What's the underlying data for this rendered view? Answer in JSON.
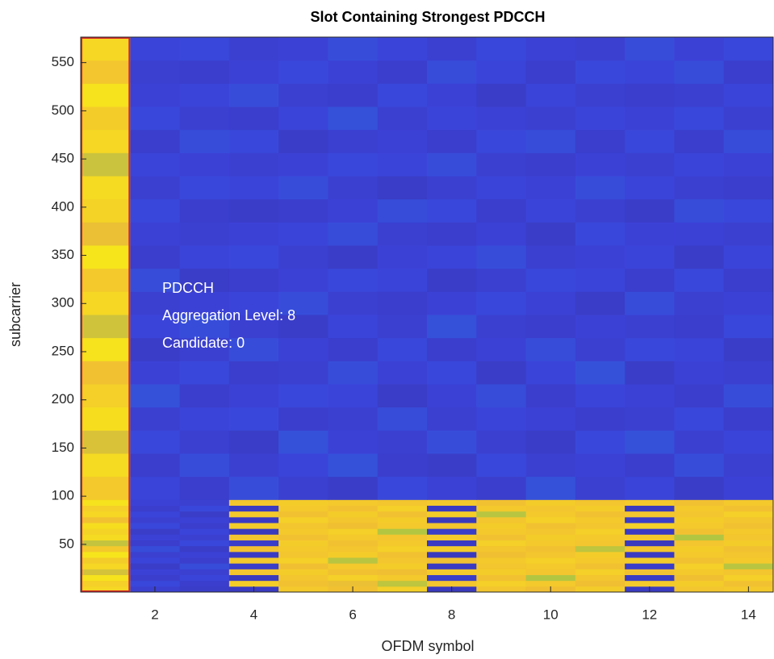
{
  "chart_data": {
    "type": "heatmap",
    "title": "Slot Containing Strongest PDCCH",
    "x_label": "OFDM symbol",
    "y_label": "subcarrier",
    "annotation": [
      "PDCCH",
      "Aggregation Level: 8",
      "Candidate: 0"
    ],
    "x": [
      1,
      2,
      3,
      4,
      5,
      6,
      7,
      8,
      9,
      10,
      11,
      12,
      13,
      14
    ],
    "y_edges": [
      0.5,
      6.5,
      12.5,
      18.5,
      24.5,
      30.5,
      36.5,
      42.5,
      48.5,
      54.5,
      60.5,
      66.5,
      72.5,
      78.5,
      84.5,
      90.5,
      96.5,
      120.5,
      144.5,
      168.5,
      192.5,
      216.5,
      240.5,
      264.5,
      288.5,
      312.5,
      336.5,
      360.5,
      384.5,
      408.5,
      432.5,
      456.5,
      480.5,
      504.5,
      528.5,
      552.5,
      576.5
    ],
    "values": [
      [
        0.9,
        0.15,
        0.13,
        0.12,
        0.86,
        0.84,
        0.88,
        0.11,
        0.85,
        0.83,
        0.87,
        0.12,
        0.85,
        0.86
      ],
      [
        0.88,
        0.18,
        0.14,
        0.87,
        0.84,
        0.82,
        0.74,
        0.85,
        0.88,
        0.86,
        0.83,
        0.86,
        0.87,
        0.84
      ],
      [
        0.93,
        0.14,
        0.17,
        0.11,
        0.85,
        0.88,
        0.86,
        0.13,
        0.84,
        0.72,
        0.85,
        0.12,
        0.83,
        0.88
      ],
      [
        0.78,
        0.16,
        0.15,
        0.85,
        0.87,
        0.84,
        0.83,
        0.86,
        0.87,
        0.85,
        0.88,
        0.84,
        0.86,
        0.85
      ],
      [
        0.9,
        0.13,
        0.19,
        0.13,
        0.83,
        0.86,
        0.87,
        0.12,
        0.85,
        0.86,
        0.84,
        0.13,
        0.88,
        0.73
      ],
      [
        0.87,
        0.17,
        0.14,
        0.86,
        0.88,
        0.73,
        0.85,
        0.84,
        0.86,
        0.88,
        0.86,
        0.87,
        0.84,
        0.86
      ],
      [
        0.94,
        0.15,
        0.16,
        0.12,
        0.85,
        0.87,
        0.84,
        0.11,
        0.83,
        0.85,
        0.87,
        0.12,
        0.86,
        0.85
      ],
      [
        0.86,
        0.19,
        0.13,
        0.84,
        0.86,
        0.85,
        0.88,
        0.87,
        0.85,
        0.84,
        0.74,
        0.85,
        0.87,
        0.84
      ],
      [
        0.75,
        0.14,
        0.18,
        0.13,
        0.87,
        0.84,
        0.86,
        0.12,
        0.88,
        0.86,
        0.85,
        0.11,
        0.85,
        0.87
      ],
      [
        0.91,
        0.16,
        0.15,
        0.85,
        0.84,
        0.86,
        0.85,
        0.86,
        0.84,
        0.87,
        0.86,
        0.86,
        0.72,
        0.85
      ],
      [
        0.89,
        0.13,
        0.17,
        0.11,
        0.86,
        0.88,
        0.72,
        0.13,
        0.86,
        0.85,
        0.88,
        0.12,
        0.84,
        0.86
      ],
      [
        0.92,
        0.18,
        0.14,
        0.87,
        0.85,
        0.83,
        0.86,
        0.85,
        0.87,
        0.84,
        0.85,
        0.88,
        0.86,
        0.84
      ],
      [
        0.84,
        0.15,
        0.16,
        0.12,
        0.88,
        0.85,
        0.87,
        0.11,
        0.85,
        0.88,
        0.86,
        0.13,
        0.87,
        0.85
      ],
      [
        0.9,
        0.17,
        0.13,
        0.86,
        0.84,
        0.87,
        0.84,
        0.87,
        0.73,
        0.86,
        0.84,
        0.85,
        0.85,
        0.88
      ],
      [
        0.88,
        0.14,
        0.18,
        0.12,
        0.86,
        0.84,
        0.88,
        0.12,
        0.86,
        0.85,
        0.87,
        0.11,
        0.86,
        0.84
      ],
      [
        0.93,
        0.16,
        0.15,
        0.85,
        0.87,
        0.86,
        0.85,
        0.86,
        0.84,
        0.87,
        0.85,
        0.86,
        0.84,
        0.86
      ],
      [
        0.86,
        0.17,
        0.14,
        0.19,
        0.15,
        0.13,
        0.18,
        0.16,
        0.14,
        0.2,
        0.15,
        0.17,
        0.13,
        0.16
      ],
      [
        0.91,
        0.14,
        0.19,
        0.15,
        0.17,
        0.2,
        0.14,
        0.13,
        0.18,
        0.15,
        0.16,
        0.14,
        0.19,
        0.15
      ],
      [
        0.79,
        0.18,
        0.15,
        0.13,
        0.2,
        0.16,
        0.15,
        0.19,
        0.15,
        0.13,
        0.18,
        0.2,
        0.15,
        0.17
      ],
      [
        0.92,
        0.15,
        0.17,
        0.18,
        0.14,
        0.15,
        0.19,
        0.15,
        0.17,
        0.16,
        0.14,
        0.15,
        0.18,
        0.14
      ],
      [
        0.88,
        0.2,
        0.14,
        0.16,
        0.18,
        0.17,
        0.13,
        0.16,
        0.19,
        0.14,
        0.17,
        0.16,
        0.14,
        0.19
      ],
      [
        0.84,
        0.16,
        0.18,
        0.14,
        0.15,
        0.19,
        0.16,
        0.18,
        0.13,
        0.17,
        0.2,
        0.13,
        0.16,
        0.15
      ],
      [
        0.93,
        0.13,
        0.15,
        0.19,
        0.16,
        0.14,
        0.18,
        0.14,
        0.16,
        0.19,
        0.15,
        0.18,
        0.17,
        0.13
      ],
      [
        0.77,
        0.17,
        0.19,
        0.15,
        0.13,
        0.17,
        0.15,
        0.2,
        0.15,
        0.14,
        0.16,
        0.15,
        0.14,
        0.18
      ],
      [
        0.9,
        0.15,
        0.16,
        0.17,
        0.19,
        0.15,
        0.14,
        0.16,
        0.18,
        0.16,
        0.13,
        0.19,
        0.15,
        0.16
      ],
      [
        0.86,
        0.19,
        0.13,
        0.14,
        0.16,
        0.18,
        0.17,
        0.13,
        0.15,
        0.18,
        0.17,
        0.14,
        0.18,
        0.14
      ],
      [
        0.94,
        0.14,
        0.17,
        0.18,
        0.15,
        0.13,
        0.16,
        0.17,
        0.19,
        0.15,
        0.16,
        0.17,
        0.13,
        0.17
      ],
      [
        0.82,
        0.16,
        0.15,
        0.16,
        0.17,
        0.19,
        0.15,
        0.14,
        0.16,
        0.13,
        0.18,
        0.16,
        0.16,
        0.15
      ],
      [
        0.89,
        0.18,
        0.14,
        0.13,
        0.14,
        0.16,
        0.19,
        0.18,
        0.14,
        0.17,
        0.15,
        0.13,
        0.19,
        0.18
      ],
      [
        0.91,
        0.15,
        0.18,
        0.17,
        0.19,
        0.15,
        0.13,
        0.15,
        0.17,
        0.16,
        0.19,
        0.17,
        0.15,
        0.14
      ],
      [
        0.76,
        0.17,
        0.16,
        0.15,
        0.16,
        0.18,
        0.17,
        0.19,
        0.15,
        0.14,
        0.16,
        0.15,
        0.17,
        0.16
      ],
      [
        0.9,
        0.14,
        0.19,
        0.18,
        0.13,
        0.15,
        0.16,
        0.14,
        0.18,
        0.19,
        0.14,
        0.18,
        0.14,
        0.19
      ],
      [
        0.87,
        0.18,
        0.15,
        0.14,
        0.17,
        0.2,
        0.15,
        0.17,
        0.16,
        0.15,
        0.17,
        0.16,
        0.18,
        0.15
      ],
      [
        0.93,
        0.16,
        0.17,
        0.19,
        0.15,
        0.14,
        0.18,
        0.16,
        0.13,
        0.17,
        0.15,
        0.14,
        0.15,
        0.17
      ],
      [
        0.85,
        0.15,
        0.14,
        0.16,
        0.18,
        0.16,
        0.14,
        0.19,
        0.17,
        0.14,
        0.18,
        0.17,
        0.19,
        0.14
      ],
      [
        0.9,
        0.17,
        0.18,
        0.15,
        0.16,
        0.19,
        0.17,
        0.15,
        0.18,
        0.16,
        0.15,
        0.19,
        0.16,
        0.18
      ]
    ],
    "clim": [
      0,
      1
    ],
    "colormap": [
      "#352a87",
      "#3c42d9",
      "#1a8de0",
      "#1fb7b6",
      "#95c94a",
      "#f2bf32",
      "#f9fb0e"
    ],
    "xlim": [
      0.5,
      14.5
    ],
    "xticks": [
      2,
      4,
      6,
      8,
      10,
      12,
      14
    ],
    "ylim": [
      0.5,
      576.5
    ],
    "yticks": [
      50,
      100,
      150,
      200,
      250,
      300,
      350,
      400,
      450,
      500,
      550
    ],
    "highlight": {
      "xlim": [
        0.5,
        1.5
      ],
      "color": "#d62728"
    }
  }
}
